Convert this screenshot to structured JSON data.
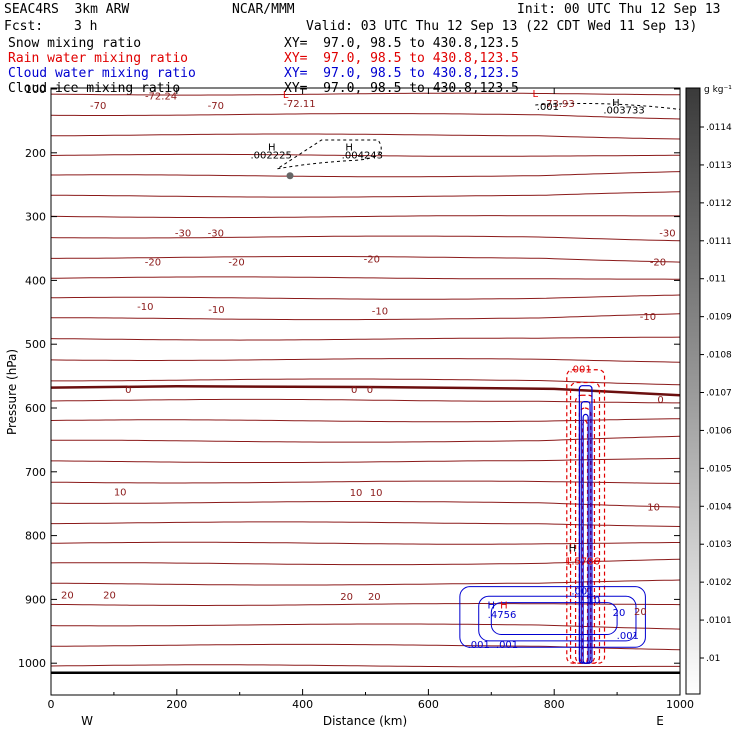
{
  "header": {
    "model": "SEAC4RS  3km ARW",
    "org": "NCAR/MMM",
    "init": "Init: 00 UTC Thu 12 Sep 13",
    "fcst_label": "Fcst:",
    "fcst_value": "3 h",
    "valid": "Valid: 03 UTC Thu 12 Sep 13 (22 CDT Wed 11 Sep 13)",
    "fields": [
      {
        "name": "Snow mixing ratio",
        "xy": "XY=  97.0, 98.5 to 430.8,123.5",
        "color": "#000000"
      },
      {
        "name": "Rain water mixing ratio",
        "xy": "XY=  97.0, 98.5 to 430.8,123.5",
        "color": "#e00000"
      },
      {
        "name": "Cloud water mixing ratio",
        "xy": "XY=  97.0, 98.5 to 430.8,123.5",
        "color": "#0000d0"
      },
      {
        "name": "Cloud ice mixing ratio",
        "xy": "XY=  97.0, 98.5 to 430.8,123.5",
        "color": "#000000"
      }
    ]
  },
  "chart_data": {
    "type": "contour",
    "xlabel": "Distance (km)",
    "ylabel": "Pressure (hPa)",
    "xlim": [
      0,
      1000
    ],
    "ylim": [
      1050,
      100
    ],
    "x_ticks": [
      "0",
      "200",
      "400",
      "600",
      "800",
      "1000"
    ],
    "y_ticks": [
      "100",
      "200",
      "300",
      "400",
      "500",
      "600",
      "700",
      "800",
      "900",
      "1000"
    ],
    "left_end": "W",
    "right_end": "E",
    "temperature_labels": [
      {
        "text": "-72.24",
        "x": 175,
        "p": 110
      },
      {
        "text": "-70",
        "x": 75,
        "p": 125
      },
      {
        "text": "-70",
        "x": 262,
        "p": 125
      },
      {
        "text": "-72.11",
        "x": 395,
        "p": 122
      },
      {
        "text": "-73.93",
        "x": 807,
        "p": 122
      },
      {
        "text": "-30",
        "x": 210,
        "p": 325
      },
      {
        "text": "-30",
        "x": 262,
        "p": 325
      },
      {
        "text": "-30",
        "x": 980,
        "p": 325
      },
      {
        "text": "-20",
        "x": 162,
        "p": 370
      },
      {
        "text": "-20",
        "x": 295,
        "p": 370
      },
      {
        "text": "-20",
        "x": 510,
        "p": 366
      },
      {
        "text": "-20",
        "x": 965,
        "p": 370
      },
      {
        "text": "-10",
        "x": 150,
        "p": 440
      },
      {
        "text": "-10",
        "x": 263,
        "p": 445
      },
      {
        "text": "-10",
        "x": 523,
        "p": 447
      },
      {
        "text": "-10",
        "x": 949,
        "p": 456
      },
      {
        "text": "0",
        "x": 123,
        "p": 570
      },
      {
        "text": "0",
        "x": 482,
        "p": 570
      },
      {
        "text": "0",
        "x": 507,
        "p": 570
      },
      {
        "text": "0",
        "x": 969,
        "p": 586
      },
      {
        "text": "10",
        "x": 110,
        "p": 731
      },
      {
        "text": "10",
        "x": 485,
        "p": 732
      },
      {
        "text": "10",
        "x": 517,
        "p": 732
      },
      {
        "text": "10",
        "x": 958,
        "p": 754
      },
      {
        "text": "20",
        "x": 26,
        "p": 892
      },
      {
        "text": "20",
        "x": 93,
        "p": 892
      },
      {
        "text": "20",
        "x": 470,
        "p": 895
      },
      {
        "text": "20",
        "x": 514,
        "p": 895
      },
      {
        "text": "20",
        "x": 937,
        "p": 918
      }
    ],
    "extrema_labels": [
      {
        "text": "H",
        "x": 351,
        "p": 190,
        "color": "#000000"
      },
      {
        "text": ".002225",
        "x": 350,
        "p": 203,
        "color": "#000000"
      },
      {
        "text": "H",
        "x": 474,
        "p": 190,
        "color": "#000000"
      },
      {
        "text": ".004243",
        "x": 495,
        "p": 203,
        "color": "#000000"
      },
      {
        "text": "H",
        "x": 898,
        "p": 120,
        "color": "#000000"
      },
      {
        "text": ".003733",
        "x": 911,
        "p": 132,
        "color": "#000000"
      },
      {
        "text": ".001",
        "x": 790,
        "p": 127,
        "color": "#000000"
      },
      {
        "text": "L",
        "x": 770,
        "p": 106,
        "color": "#e00000"
      },
      {
        "text": "L",
        "x": 373,
        "p": 108,
        "color": "#e00000"
      },
      {
        "text": ".001",
        "x": 842,
        "p": 538,
        "color": "#e00000"
      },
      {
        "text": "H",
        "x": 829,
        "p": 819,
        "color": "#000000"
      },
      {
        "text": "1.5786",
        "x": 845,
        "p": 839,
        "color": "#e00000"
      },
      {
        "text": "H",
        "x": 700,
        "p": 908,
        "color": "#0000d0"
      },
      {
        "text": "H",
        "x": 720,
        "p": 908,
        "color": "#e00000"
      },
      {
        "text": ".4756",
        "x": 717,
        "p": 923,
        "color": "#0000d0"
      },
      {
        "text": ".001",
        "x": 680,
        "p": 970,
        "color": "#0000d0"
      },
      {
        "text": ".001",
        "x": 725,
        "p": 970,
        "color": "#0000d0"
      },
      {
        "text": ".001",
        "x": 917,
        "p": 956,
        "color": "#0000d0"
      },
      {
        "text": ".001",
        "x": 845,
        "p": 886,
        "color": "#0000d0"
      },
      {
        "text": "20",
        "x": 903,
        "p": 920,
        "color": "#0000d0"
      },
      {
        "text": "10",
        "x": 863,
        "p": 900,
        "color": "#0000d0"
      }
    ],
    "colorbar": {
      "unit": "g kg⁻¹",
      "ticks": [
        ".0114",
        ".0113",
        ".0112",
        ".0111",
        ".011",
        ".0109",
        ".0108",
        ".0107",
        ".0106",
        ".0105",
        ".0104",
        ".0103",
        ".0102",
        ".0101",
        ".01"
      ]
    }
  }
}
